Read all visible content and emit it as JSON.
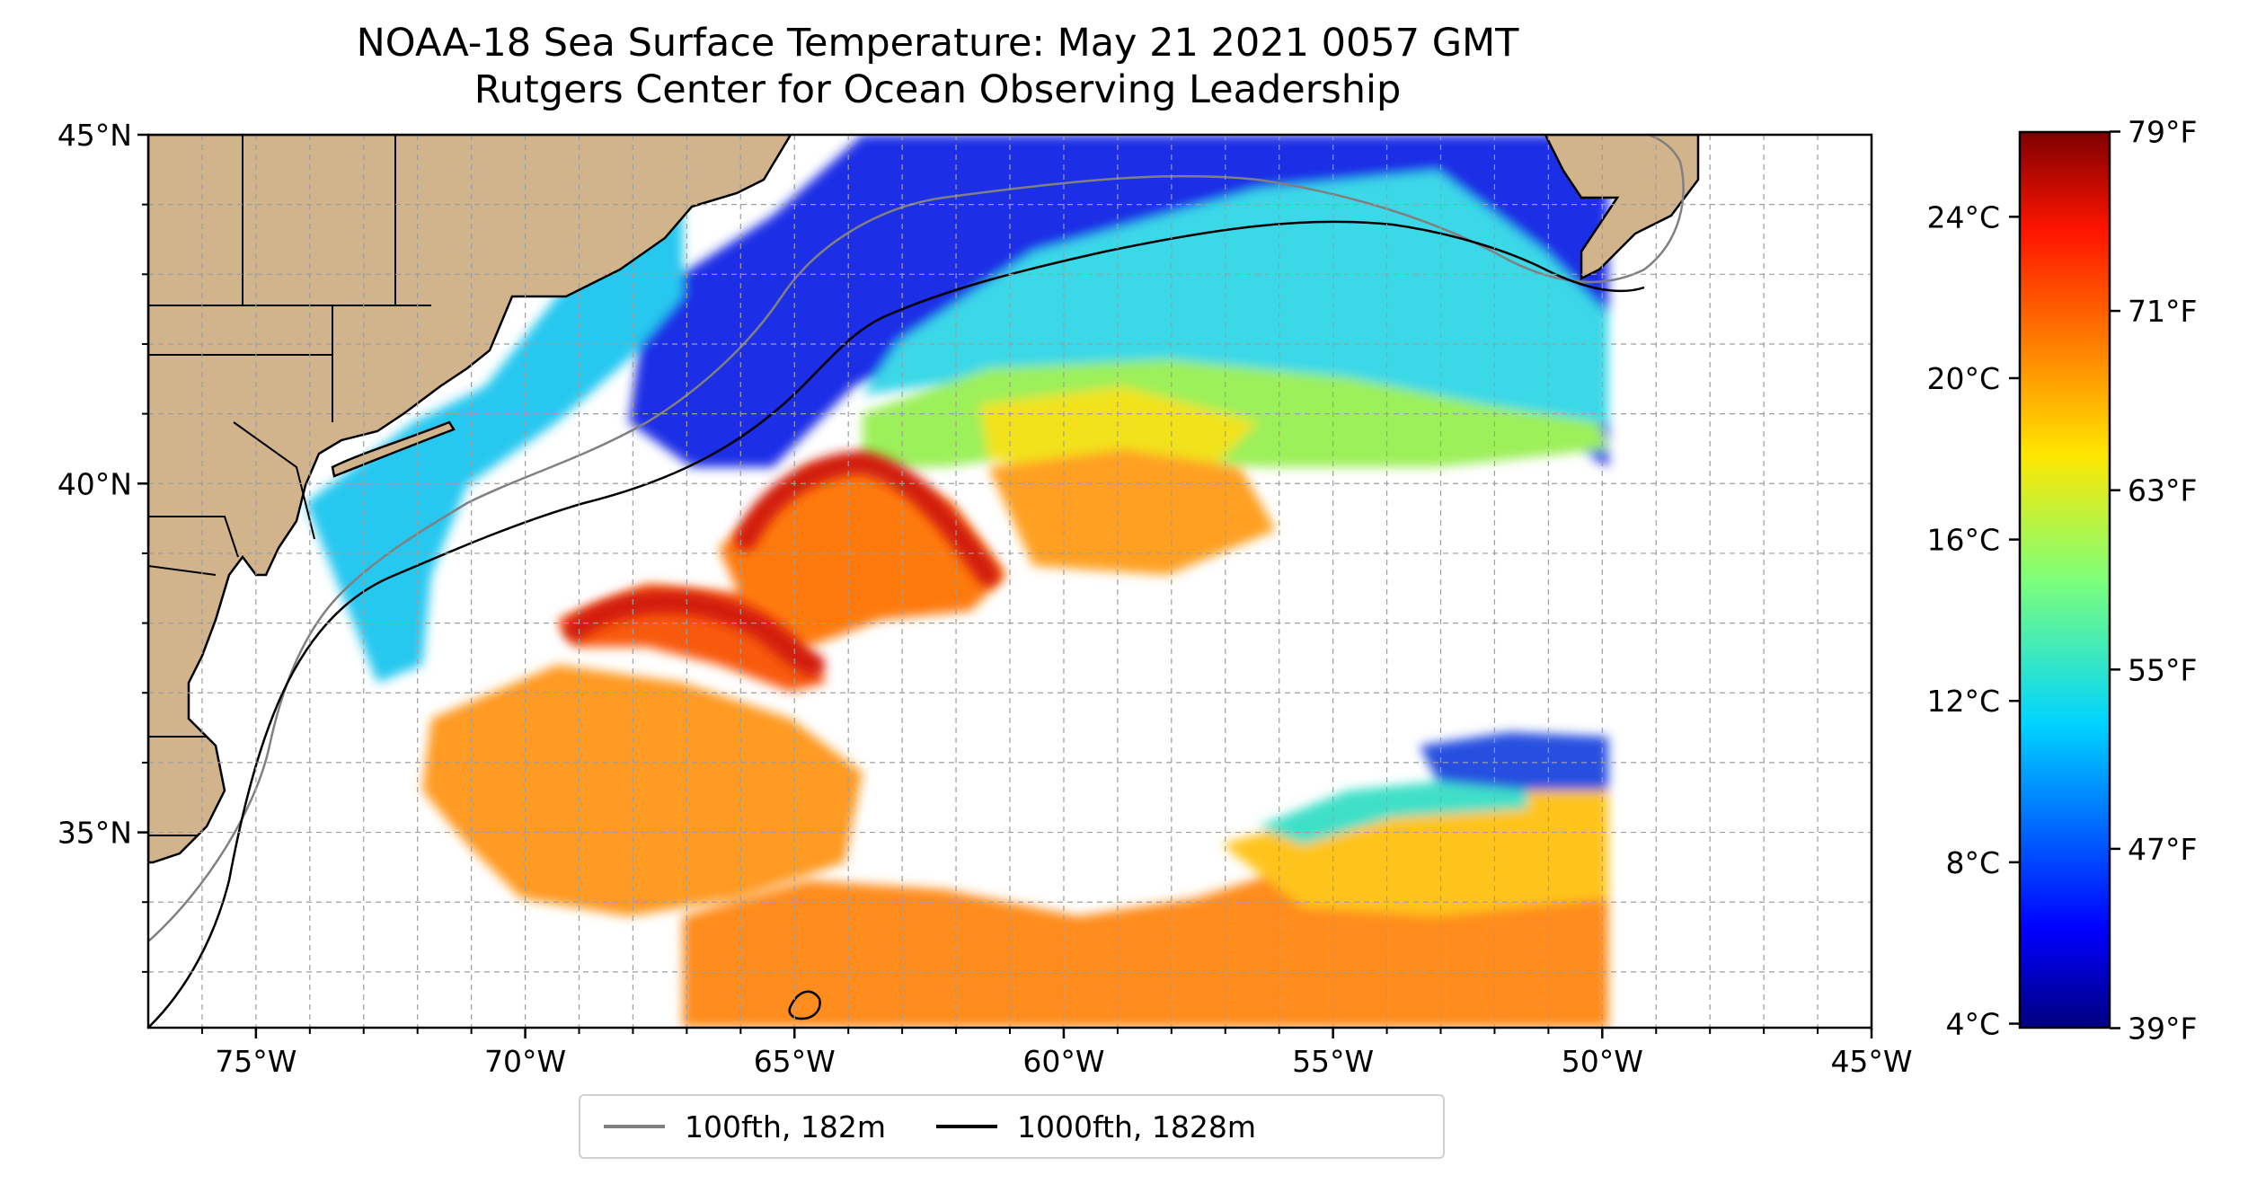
{
  "title": {
    "line1": "NOAA-18 Sea Surface Temperature: May 21 2021 0057 GMT",
    "line2": "Rutgers Center for Ocean Observing Leadership"
  },
  "map": {
    "lon_range": [
      -77,
      -45
    ],
    "lat_range": [
      32.2,
      45
    ],
    "lon_ticks": [
      "75°W",
      "70°W",
      "65°W",
      "60°W",
      "55°W",
      "50°W",
      "45°W"
    ],
    "lat_ticks": [
      "35°N",
      "40°N",
      "45°N"
    ],
    "gridlines": "dashed",
    "land_color": "#d2b48c"
  },
  "colorbar": {
    "colormap": "jet",
    "range_c": [
      3.9,
      26.1
    ],
    "celsius_ticks": [
      "4°C",
      "8°C",
      "12°C",
      "16°C",
      "20°C",
      "24°C"
    ],
    "fahrenheit_ticks": [
      "39°F",
      "47°F",
      "55°F",
      "63°F",
      "71°F",
      "79°F"
    ]
  },
  "legend": {
    "placement": "bottom-center",
    "items": [
      {
        "label": "100fth, 182m",
        "color": "#808080"
      },
      {
        "label": "1000fth, 1828m",
        "color": "#000000"
      }
    ]
  }
}
